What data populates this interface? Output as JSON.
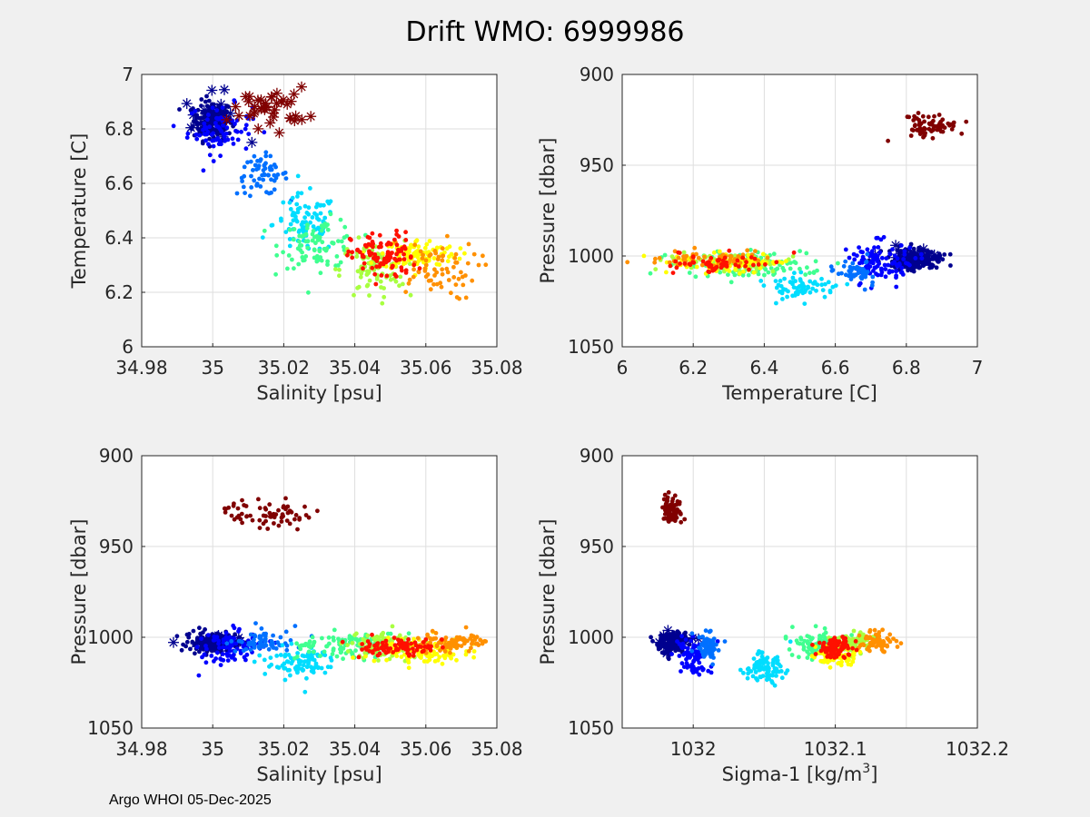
{
  "figure": {
    "title": "Drift WMO: 6999986",
    "credit": "Argo WHOI 05-Dec-2025"
  },
  "colors": {
    "color_ramp": [
      "#00008f",
      "#0000ff",
      "#0070ff",
      "#00ddff",
      "#40ff90",
      "#a8ff40",
      "#ffff00",
      "#ff9000",
      "#ff1000",
      "#800000"
    ],
    "grid": "#dedede",
    "axis": "#262626",
    "plot_bg": "#ffffff"
  },
  "chart_data": [
    {
      "id": "ts",
      "type": "scatter",
      "xlabel": "Salinity [psu]",
      "ylabel": "Temperature [C]",
      "xlim": [
        34.98,
        35.08
      ],
      "ylim": [
        6,
        7
      ],
      "y_reversed": false,
      "xticks": [
        34.98,
        35.0,
        35.02,
        35.04,
        35.06,
        35.08
      ],
      "xticklabels": [
        "34.98",
        "35",
        "35.02",
        "35.04",
        "35.06",
        "35.08"
      ],
      "yticks": [
        6,
        6.2,
        6.4,
        6.6,
        6.8,
        7
      ],
      "yticklabels": [
        "6",
        "6.2",
        "6.4",
        "6.6",
        "6.8",
        "7"
      ],
      "grid": true,
      "clusters": [
        {
          "center": [
            35.0,
            6.83
          ],
          "spread": [
            0.003,
            0.04
          ],
          "n": 190,
          "color_index": 0,
          "marker": "dot"
        },
        {
          "center": [
            35.0,
            6.84
          ],
          "spread": [
            0.0045,
            0.05
          ],
          "n": 18,
          "color_index": 0,
          "marker": "star"
        },
        {
          "center": [
            35.002,
            6.8
          ],
          "spread": [
            0.005,
            0.05
          ],
          "n": 80,
          "color_index": 1,
          "marker": "dot"
        },
        {
          "center": [
            35.014,
            6.63
          ],
          "spread": [
            0.004,
            0.04
          ],
          "n": 60,
          "color_index": 2,
          "marker": "dot"
        },
        {
          "center": [
            35.026,
            6.45
          ],
          "spread": [
            0.005,
            0.06
          ],
          "n": 90,
          "color_index": 3,
          "marker": "dot"
        },
        {
          "center": [
            35.03,
            6.38
          ],
          "spread": [
            0.006,
            0.05
          ],
          "n": 90,
          "color_index": 4,
          "marker": "dot"
        },
        {
          "center": [
            35.045,
            6.28
          ],
          "spread": [
            0.005,
            0.06
          ],
          "n": 90,
          "color_index": 5,
          "marker": "dot"
        },
        {
          "center": [
            35.058,
            6.34
          ],
          "spread": [
            0.006,
            0.03
          ],
          "n": 110,
          "color_index": 6,
          "marker": "dot"
        },
        {
          "center": [
            35.062,
            6.28
          ],
          "spread": [
            0.007,
            0.06
          ],
          "n": 70,
          "color_index": 7,
          "marker": "dot"
        },
        {
          "center": [
            35.048,
            6.33
          ],
          "spread": [
            0.005,
            0.05
          ],
          "n": 100,
          "color_index": 8,
          "marker": "dot"
        },
        {
          "center": [
            35.016,
            6.88
          ],
          "spread": [
            0.006,
            0.04
          ],
          "n": 40,
          "color_index": 9,
          "marker": "star"
        }
      ]
    },
    {
      "id": "tp",
      "type": "scatter",
      "xlabel": "Temperature [C]",
      "ylabel": "Pressure [dbar]",
      "xlim": [
        6,
        7
      ],
      "ylim": [
        900,
        1050
      ],
      "y_reversed": true,
      "xticks": [
        6,
        6.2,
        6.4,
        6.6,
        6.8,
        7
      ],
      "xticklabels": [
        "6",
        "6.2",
        "6.4",
        "6.6",
        "6.8",
        "7"
      ],
      "yticks": [
        900,
        950,
        1000,
        1050
      ],
      "yticklabels": [
        "900",
        "950",
        "1000",
        "1050"
      ],
      "grid": true,
      "clusters": [
        {
          "center": [
            6.83,
            1002
          ],
          "spread": [
            0.04,
            3.0
          ],
          "n": 200,
          "color_index": 0,
          "marker": "dot"
        },
        {
          "center": [
            6.82,
            1000
          ],
          "spread": [
            0.05,
            3.0
          ],
          "n": 16,
          "color_index": 0,
          "marker": "star"
        },
        {
          "center": [
            6.72,
            1003
          ],
          "spread": [
            0.05,
            6.0
          ],
          "n": 110,
          "color_index": 1,
          "marker": "dot"
        },
        {
          "center": [
            6.66,
            1008
          ],
          "spread": [
            0.03,
            4.0
          ],
          "n": 50,
          "color_index": 2,
          "marker": "dot"
        },
        {
          "center": [
            6.5,
            1017
          ],
          "spread": [
            0.05,
            4.0
          ],
          "n": 70,
          "color_index": 3,
          "marker": "dot"
        },
        {
          "center": [
            6.35,
            1005
          ],
          "spread": [
            0.1,
            4.0
          ],
          "n": 120,
          "color_index": 4,
          "marker": "dot"
        },
        {
          "center": [
            6.28,
            1003
          ],
          "spread": [
            0.08,
            3.0
          ],
          "n": 80,
          "color_index": 5,
          "marker": "dot"
        },
        {
          "center": [
            6.3,
            1004
          ],
          "spread": [
            0.08,
            3.0
          ],
          "n": 90,
          "color_index": 6,
          "marker": "dot"
        },
        {
          "center": [
            6.25,
            1002
          ],
          "spread": [
            0.1,
            3.0
          ],
          "n": 60,
          "color_index": 7,
          "marker": "dot"
        },
        {
          "center": [
            6.28,
            1004
          ],
          "spread": [
            0.08,
            3.0
          ],
          "n": 60,
          "color_index": 8,
          "marker": "dot"
        },
        {
          "center": [
            6.87,
            929
          ],
          "spread": [
            0.04,
            4.0
          ],
          "n": 70,
          "color_index": 9,
          "marker": "dot"
        }
      ]
    },
    {
      "id": "sp",
      "type": "scatter",
      "xlabel": "Salinity [psu]",
      "ylabel": "Pressure [dbar]",
      "xlim": [
        34.98,
        35.08
      ],
      "ylim": [
        900,
        1050
      ],
      "y_reversed": true,
      "xticks": [
        34.98,
        35.0,
        35.02,
        35.04,
        35.06,
        35.08
      ],
      "xticklabels": [
        "34.98",
        "35",
        "35.02",
        "35.04",
        "35.06",
        "35.08"
      ],
      "yticks": [
        900,
        950,
        1000,
        1050
      ],
      "yticklabels": [
        "900",
        "950",
        "1000",
        "1050"
      ],
      "grid": true,
      "clusters": [
        {
          "center": [
            35.0,
            1003
          ],
          "spread": [
            0.004,
            3.0
          ],
          "n": 180,
          "color_index": 0,
          "marker": "dot"
        },
        {
          "center": [
            35.0,
            1002
          ],
          "spread": [
            0.005,
            3.0
          ],
          "n": 14,
          "color_index": 0,
          "marker": "star"
        },
        {
          "center": [
            35.005,
            1005
          ],
          "spread": [
            0.005,
            5.0
          ],
          "n": 90,
          "color_index": 1,
          "marker": "dot"
        },
        {
          "center": [
            35.013,
            1003
          ],
          "spread": [
            0.005,
            4.0
          ],
          "n": 60,
          "color_index": 2,
          "marker": "dot"
        },
        {
          "center": [
            35.024,
            1014
          ],
          "spread": [
            0.006,
            5.0
          ],
          "n": 90,
          "color_index": 3,
          "marker": "dot"
        },
        {
          "center": [
            35.038,
            1004
          ],
          "spread": [
            0.008,
            4.0
          ],
          "n": 110,
          "color_index": 4,
          "marker": "dot"
        },
        {
          "center": [
            35.05,
            1005
          ],
          "spread": [
            0.007,
            4.0
          ],
          "n": 90,
          "color_index": 5,
          "marker": "dot"
        },
        {
          "center": [
            35.058,
            1008
          ],
          "spread": [
            0.007,
            4.0
          ],
          "n": 110,
          "color_index": 6,
          "marker": "dot"
        },
        {
          "center": [
            35.068,
            1003
          ],
          "spread": [
            0.006,
            3.0
          ],
          "n": 80,
          "color_index": 7,
          "marker": "dot"
        },
        {
          "center": [
            35.052,
            1005
          ],
          "spread": [
            0.006,
            3.0
          ],
          "n": 90,
          "color_index": 8,
          "marker": "dot"
        },
        {
          "center": [
            35.018,
            932
          ],
          "spread": [
            0.008,
            3.5
          ],
          "n": 70,
          "color_index": 9,
          "marker": "dot"
        }
      ]
    },
    {
      "id": "sigp",
      "type": "scatter",
      "xlabel": "Sigma-1 [kg/m",
      "xlabel_sup": "3",
      "xlabel_tail": "]",
      "ylabel": "Pressure [dbar]",
      "xlim": [
        1031.95,
        1032.2
      ],
      "ylim": [
        900,
        1050
      ],
      "y_reversed": true,
      "xticks": [
        1032.0,
        1032.1,
        1032.2
      ],
      "xticklabels": [
        "1032",
        "1032.1",
        "1032.2"
      ],
      "minor_xticks": [
        1031.95,
        1032.05,
        1032.15
      ],
      "yticks": [
        900,
        950,
        1000,
        1050
      ],
      "yticklabels": [
        "900",
        "950",
        "1000",
        "1050"
      ],
      "grid": true,
      "clusters": [
        {
          "center": [
            1031.985,
            1003
          ],
          "spread": [
            0.006,
            3.0
          ],
          "n": 180,
          "color_index": 0,
          "marker": "dot"
        },
        {
          "center": [
            1031.985,
            1002
          ],
          "spread": [
            0.008,
            3.0
          ],
          "n": 12,
          "color_index": 0,
          "marker": "star"
        },
        {
          "center": [
            1032.0,
            1010
          ],
          "spread": [
            0.006,
            5.0
          ],
          "n": 90,
          "color_index": 1,
          "marker": "dot"
        },
        {
          "center": [
            1032.01,
            1005
          ],
          "spread": [
            0.005,
            4.0
          ],
          "n": 60,
          "color_index": 2,
          "marker": "dot"
        },
        {
          "center": [
            1032.05,
            1016
          ],
          "spread": [
            0.008,
            5.0
          ],
          "n": 90,
          "color_index": 3,
          "marker": "dot"
        },
        {
          "center": [
            1032.09,
            1004
          ],
          "spread": [
            0.01,
            4.0
          ],
          "n": 110,
          "color_index": 4,
          "marker": "dot"
        },
        {
          "center": [
            1032.11,
            1003
          ],
          "spread": [
            0.008,
            3.0
          ],
          "n": 90,
          "color_index": 5,
          "marker": "dot"
        },
        {
          "center": [
            1032.1,
            1010
          ],
          "spread": [
            0.008,
            3.0
          ],
          "n": 80,
          "color_index": 6,
          "marker": "dot"
        },
        {
          "center": [
            1032.13,
            1002
          ],
          "spread": [
            0.007,
            3.0
          ],
          "n": 60,
          "color_index": 7,
          "marker": "dot"
        },
        {
          "center": [
            1032.1,
            1006
          ],
          "spread": [
            0.007,
            3.0
          ],
          "n": 90,
          "color_index": 8,
          "marker": "dot"
        },
        {
          "center": [
            1031.985,
            930
          ],
          "spread": [
            0.004,
            4.0
          ],
          "n": 70,
          "color_index": 9,
          "marker": "dot"
        }
      ]
    }
  ]
}
